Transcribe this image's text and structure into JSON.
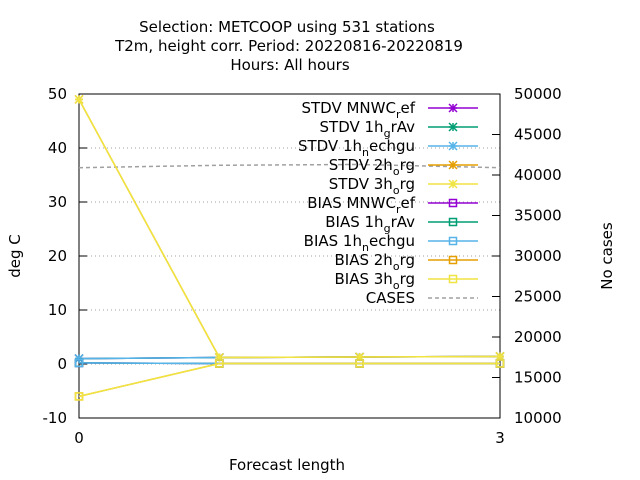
{
  "chart_data": {
    "type": "line",
    "title_lines": [
      "Selection: METCOOP using   531 stations",
      "T2m, height corr.   Period: 20220816-20220819",
      "Hours:  All hours"
    ],
    "xlabel": "Forecast length",
    "ylabel": "deg C",
    "y2label": "No cases",
    "xlim": [
      0,
      3
    ],
    "ylim": [
      -10,
      50
    ],
    "y2lim": [
      10000,
      50000
    ],
    "x_ticks": [
      0,
      3
    ],
    "y_ticks": [
      -10,
      0,
      10,
      20,
      30,
      40,
      50
    ],
    "y2_ticks": [
      10000,
      15000,
      20000,
      25000,
      30000,
      35000,
      40000,
      45000,
      50000
    ],
    "grid": true,
    "legend_position": "top-right",
    "series": [
      {
        "key": "stdv_mnwc",
        "legend_main": "STDV MNWC",
        "legend_sub": "r",
        "legend_tail": "ef",
        "color": "#9400d3",
        "marker": "x",
        "x": [
          0,
          1,
          2,
          3
        ],
        "values": [
          1.0,
          1.2,
          1.3,
          1.4
        ]
      },
      {
        "key": "stdv_1h_grav",
        "legend_main": "STDV 1h",
        "legend_sub": "g",
        "legend_tail": "rAv",
        "color": "#009e73",
        "marker": "x",
        "x": [
          0,
          1,
          2,
          3
        ],
        "values": [
          1.0,
          1.2,
          1.3,
          1.4
        ]
      },
      {
        "key": "stdv_1h_nechgu",
        "legend_main": "STDV 1h",
        "legend_sub": "n",
        "legend_tail": "echgu",
        "color": "#56b4e9",
        "marker": "x",
        "x": [
          0,
          1,
          2,
          3
        ],
        "values": [
          1.0,
          1.2,
          1.3,
          1.4
        ]
      },
      {
        "key": "stdv_2h_org",
        "legend_main": "STDV 2h",
        "legend_sub": "o",
        "legend_tail": "rg",
        "color": "#e69f00",
        "marker": "x",
        "x": [
          0,
          1,
          2,
          3
        ],
        "values": [
          49.0,
          1.2,
          1.3,
          1.4
        ]
      },
      {
        "key": "stdv_3h_org",
        "legend_main": "STDV 3h",
        "legend_sub": "o",
        "legend_tail": "rg",
        "color": "#f0e442",
        "marker": "x",
        "x": [
          0,
          1,
          2,
          3
        ],
        "values": [
          49.0,
          1.2,
          1.3,
          1.4
        ]
      },
      {
        "key": "bias_mnwc",
        "legend_main": "BIAS MNWC",
        "legend_sub": "r",
        "legend_tail": "ef",
        "color": "#9400d3",
        "marker": "square",
        "x": [
          0,
          1,
          2,
          3
        ],
        "values": [
          0.2,
          0.1,
          0.1,
          0.1
        ]
      },
      {
        "key": "bias_1h_grav",
        "legend_main": "BIAS 1h",
        "legend_sub": "g",
        "legend_tail": "rAv",
        "color": "#009e73",
        "marker": "square",
        "x": [
          0,
          1,
          2,
          3
        ],
        "values": [
          0.2,
          0.1,
          0.1,
          0.1
        ]
      },
      {
        "key": "bias_1h_nechgu",
        "legend_main": "BIAS 1h",
        "legend_sub": "n",
        "legend_tail": "echgu",
        "color": "#56b4e9",
        "marker": "square",
        "x": [
          0,
          1,
          2,
          3
        ],
        "values": [
          0.2,
          0.1,
          0.1,
          0.1
        ]
      },
      {
        "key": "bias_2h_org",
        "legend_main": "BIAS 2h",
        "legend_sub": "o",
        "legend_tail": "rg",
        "color": "#e69f00",
        "marker": "square",
        "x": [
          0,
          1,
          2,
          3
        ],
        "values": [
          -6.0,
          0.1,
          0.1,
          0.1
        ]
      },
      {
        "key": "bias_3h_org",
        "legend_main": "BIAS 3h",
        "legend_sub": "o",
        "legend_tail": "rg",
        "color": "#f0e442",
        "marker": "square",
        "x": [
          0,
          1,
          2,
          3
        ],
        "values": [
          -6.0,
          0.1,
          0.1,
          0.1
        ]
      }
    ],
    "cases": {
      "legend_main": "CASES",
      "color": "#a0a0a0",
      "x": [
        0,
        1,
        2,
        3
      ],
      "values": [
        40900,
        41200,
        41300,
        40900
      ]
    }
  }
}
